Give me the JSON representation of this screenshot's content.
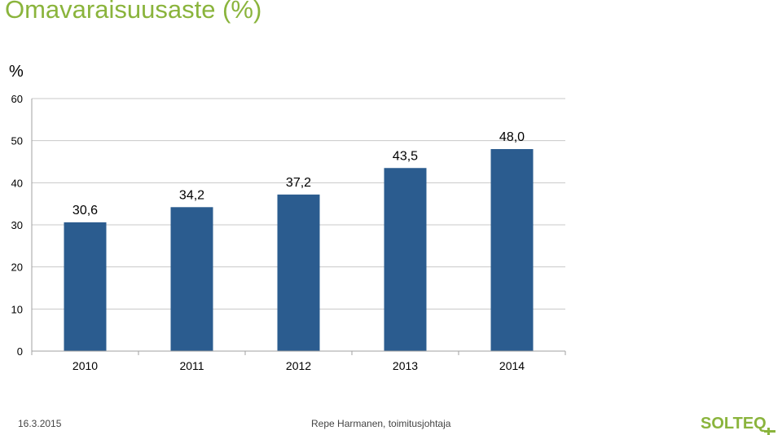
{
  "slide": {
    "title": "Omavaraisuusaste (%)",
    "footer_date": "16.3.2015",
    "footer_presenter": "Repe Harmanen, toimitusjohtaja",
    "logo_text": "SOLTEQ"
  },
  "colors": {
    "title": "#8ab43c",
    "bar": "#2b5c8f",
    "grid": "#c8c8c8",
    "logo_green": "#8ab43c"
  },
  "chart_data": {
    "type": "bar",
    "title": "",
    "xlabel": "",
    "ylabel": "%",
    "categories": [
      "2010",
      "2011",
      "2012",
      "2013",
      "2014"
    ],
    "values": [
      30.6,
      34.2,
      37.2,
      43.5,
      48.0
    ],
    "data_labels": [
      "30,6",
      "34,2",
      "37,2",
      "43,5",
      "48,0"
    ],
    "yticks": [
      0,
      10,
      20,
      30,
      40,
      50,
      60
    ],
    "ylim": [
      0,
      60
    ],
    "grid": true,
    "legend": "none"
  }
}
